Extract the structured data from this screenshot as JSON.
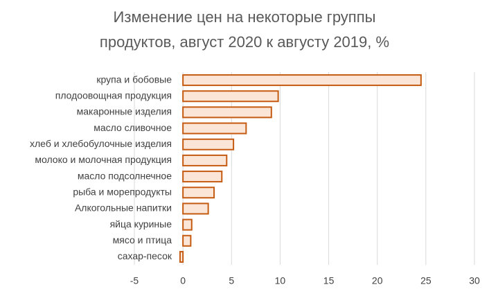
{
  "chart_data": {
    "type": "hbar",
    "title": [
      "Изменение цен на некоторые группы",
      "продуктов, август 2020 к августу 2019, %"
    ],
    "categories": [
      "крупа и бобовые",
      "плодоовощная продукция",
      "макаронные изделия",
      "масло сливочное",
      "хлеб и хлебобулочные изделия",
      "молоко и молочная продукция",
      "масло подсолнечное",
      "рыба и морепродукты",
      "Алкогольные напитки",
      "яйца куриные",
      "мясо и птица",
      "сахар-песок"
    ],
    "values": [
      24.5,
      9.8,
      9.1,
      6.5,
      5.2,
      4.5,
      4.0,
      3.2,
      2.6,
      0.9,
      0.8,
      -0.3
    ],
    "color": "#fbe5d6",
    "edge_color": "#c55a11",
    "xlim": [
      -5,
      30
    ],
    "xticks": [
      -5,
      0,
      5,
      10,
      15,
      20,
      25,
      30
    ],
    "grid": true
  }
}
